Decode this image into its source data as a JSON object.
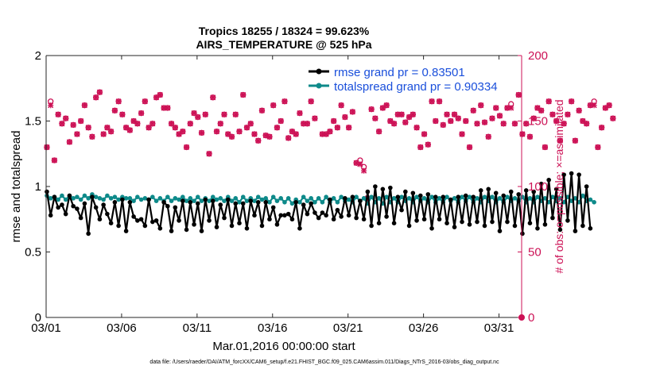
{
  "chart_data": {
    "type": "line",
    "title_line1": "Tropics 18255 / 18324 = 99.623%",
    "title_line2": "AIRS_TEMPERATURE @ 525 hPa",
    "xlabel": "Mar.01,2016 00:00:00 start",
    "ylabel_left": "rmse and totalspread",
    "ylabel_right": "# of obs: o=possible; ×=assimilated",
    "xlim": [
      0,
      31.5
    ],
    "ylim_left": [
      0,
      2
    ],
    "ylim_right": [
      0,
      200
    ],
    "x_ticks": [
      {
        "value": 0,
        "label": "03/01"
      },
      {
        "value": 5,
        "label": "03/06"
      },
      {
        "value": 10,
        "label": "03/11"
      },
      {
        "value": 15,
        "label": "03/16"
      },
      {
        "value": 20,
        "label": "03/21"
      },
      {
        "value": 25,
        "label": "03/26"
      },
      {
        "value": 30,
        "label": "03/31"
      }
    ],
    "y_ticks_left": [
      {
        "value": 0,
        "label": "0"
      },
      {
        "value": 0.5,
        "label": "0.5"
      },
      {
        "value": 1,
        "label": "1"
      },
      {
        "value": 1.5,
        "label": "1.5"
      },
      {
        "value": 2,
        "label": "2"
      }
    ],
    "y_ticks_right": [
      {
        "value": 0,
        "label": "0"
      },
      {
        "value": 50,
        "label": "50"
      },
      {
        "value": 100,
        "label": "100"
      },
      {
        "value": 150,
        "label": "150"
      },
      {
        "value": 200,
        "label": "200"
      }
    ],
    "x_step": 0.25,
    "series": [
      {
        "name": "rmse",
        "legend": "rmse grand pr = 0.83501",
        "color": "#000000",
        "axis": "left",
        "values": [
          0.96,
          0.78,
          0.92,
          0.84,
          0.86,
          0.79,
          0.93,
          0.85,
          0.83,
          0.76,
          0.87,
          0.64,
          0.92,
          0.84,
          0.75,
          0.86,
          0.79,
          0.72,
          0.88,
          0.7,
          0.9,
          0.66,
          0.88,
          0.77,
          0.74,
          0.75,
          0.7,
          0.9,
          0.73,
          0.74,
          0.68,
          0.88,
          0.85,
          0.66,
          0.84,
          0.74,
          0.89,
          0.67,
          0.88,
          0.71,
          0.87,
          0.66,
          0.9,
          0.74,
          0.89,
          0.69,
          0.86,
          0.76,
          0.9,
          0.7,
          0.87,
          0.72,
          0.87,
          0.68,
          0.89,
          0.78,
          0.88,
          0.7,
          0.88,
          0.75,
          0.84,
          0.71,
          0.78,
          0.78,
          0.79,
          0.75,
          0.88,
          0.68,
          0.86,
          0.79,
          0.87,
          0.8,
          0.76,
          0.8,
          0.78,
          0.9,
          0.75,
          0.82,
          0.77,
          0.91,
          0.78,
          0.92,
          0.76,
          0.89,
          0.75,
          0.96,
          0.7,
          1.0,
          0.72,
          0.98,
          0.77,
          0.99,
          0.72,
          0.92,
          0.82,
          0.96,
          0.7,
          0.95,
          0.74,
          0.93,
          0.75,
          0.94,
          0.68,
          0.92,
          0.75,
          0.92,
          0.72,
          0.9,
          0.69,
          0.92,
          0.73,
          0.93,
          0.71,
          0.92,
          0.73,
          0.97,
          0.7,
          0.98,
          0.73,
          0.95,
          0.66,
          0.93,
          0.73,
          0.96,
          0.7,
          0.94,
          0.64,
          0.97,
          0.72,
          0.96,
          0.68,
          1.02,
          0.71,
          1.05,
          0.76,
          0.98,
          0.67,
          1.09,
          0.74,
          1.1,
          0.66,
          1.09,
          0.7,
          1.0,
          0.68
        ]
      },
      {
        "name": "totalspread",
        "legend": "totalspread grand pr = 0.90334",
        "color": "#0e8a8a",
        "axis": "left",
        "values": [
          0.93,
          0.91,
          0.92,
          0.9,
          0.93,
          0.9,
          0.93,
          0.91,
          0.92,
          0.9,
          0.93,
          0.91,
          0.94,
          0.92,
          0.91,
          0.9,
          0.93,
          0.91,
          0.92,
          0.9,
          0.92,
          0.91,
          0.91,
          0.89,
          0.92,
          0.9,
          0.91,
          0.9,
          0.92,
          0.89,
          0.91,
          0.89,
          0.92,
          0.89,
          0.91,
          0.9,
          0.92,
          0.89,
          0.91,
          0.89,
          0.92,
          0.89,
          0.91,
          0.89,
          0.92,
          0.9,
          0.91,
          0.89,
          0.92,
          0.89,
          0.91,
          0.88,
          0.92,
          0.89,
          0.91,
          0.89,
          0.92,
          0.9,
          0.91,
          0.88,
          0.92,
          0.89,
          0.91,
          0.88,
          0.91,
          0.87,
          0.9,
          0.88,
          0.92,
          0.89,
          0.91,
          0.88,
          0.91,
          0.88,
          0.92,
          0.88,
          0.91,
          0.88,
          0.92,
          0.89,
          0.9,
          0.88,
          0.92,
          0.89,
          0.91,
          0.87,
          0.92,
          0.88,
          0.91,
          0.87,
          0.92,
          0.88,
          0.91,
          0.88,
          0.92,
          0.89,
          0.91,
          0.88,
          0.92,
          0.89,
          0.91,
          0.88,
          0.92,
          0.88,
          0.91,
          0.88,
          0.92,
          0.89,
          0.91,
          0.88,
          0.92,
          0.89,
          0.92,
          0.88,
          0.91,
          0.88,
          0.92,
          0.89,
          0.92,
          0.88,
          0.91,
          0.88,
          0.92,
          0.89,
          0.91,
          0.89,
          0.92,
          0.88,
          0.91,
          0.88,
          0.92,
          0.89,
          0.91,
          0.88,
          0.92,
          0.89,
          0.91,
          0.88,
          0.92,
          0.89,
          0.91,
          0.88,
          0.93,
          0.89,
          0.9,
          0.88
        ]
      },
      {
        "name": "obs_possible",
        "legend": "o=possible",
        "color": "#cc1155",
        "axis": "right",
        "values": [
          130,
          165,
          120,
          155,
          148,
          152,
          134,
          147,
          140,
          150,
          162,
          145,
          138,
          168,
          172,
          140,
          145,
          142,
          158,
          165,
          155,
          145,
          143,
          150,
          148,
          156,
          165,
          145,
          148,
          168,
          170,
          160,
          160,
          148,
          145,
          140,
          142,
          130,
          148,
          156,
          153,
          141,
          155,
          125,
          168,
          142,
          148,
          155,
          140,
          138,
          155,
          142,
          170,
          145,
          148,
          140,
          135,
          158,
          139,
          138,
          162,
          145,
          150,
          165,
          137,
          142,
          140,
          156,
          148,
          148,
          165,
          152,
          173,
          140,
          140,
          142,
          150,
          145,
          162,
          153,
          145,
          157,
          118,
          120,
          115,
          91,
          159,
          152,
          142,
          160,
          162,
          150,
          148,
          155,
          155,
          149,
          153,
          155,
          145,
          130,
          140,
          132,
          165,
          150,
          165,
          147,
          155,
          150,
          155,
          152,
          140,
          150,
          130,
          158,
          148,
          162,
          149,
          138,
          152,
          160,
          154,
          148,
          160,
          163,
          148,
          170,
          140,
          148,
          138,
          152,
          160,
          158,
          130,
          165,
          155,
          150,
          135,
          148,
          155,
          165,
          135,
          158,
          150,
          148,
          162,
          165,
          130,
          145,
          160,
          162,
          152
        ]
      },
      {
        "name": "obs_assimilated",
        "legend": "×=assimilated",
        "color": "#cc1155",
        "axis": "right",
        "values": [
          130,
          162,
          120,
          155,
          148,
          152,
          134,
          147,
          140,
          150,
          162,
          145,
          138,
          168,
          172,
          140,
          145,
          142,
          158,
          165,
          155,
          145,
          143,
          150,
          148,
          156,
          165,
          145,
          148,
          168,
          170,
          160,
          160,
          148,
          145,
          140,
          142,
          130,
          148,
          156,
          153,
          141,
          155,
          125,
          168,
          142,
          148,
          155,
          140,
          138,
          155,
          142,
          170,
          145,
          148,
          140,
          135,
          158,
          139,
          138,
          162,
          145,
          150,
          165,
          137,
          142,
          140,
          156,
          148,
          148,
          165,
          152,
          173,
          140,
          140,
          142,
          150,
          145,
          162,
          153,
          145,
          157,
          118,
          117,
          112,
          91,
          159,
          152,
          142,
          160,
          162,
          150,
          148,
          155,
          155,
          149,
          153,
          155,
          145,
          130,
          140,
          132,
          165,
          150,
          165,
          147,
          155,
          150,
          155,
          152,
          140,
          150,
          130,
          158,
          148,
          162,
          149,
          138,
          152,
          160,
          154,
          148,
          160,
          160,
          148,
          170,
          140,
          148,
          138,
          152,
          160,
          158,
          130,
          165,
          155,
          150,
          135,
          148,
          155,
          165,
          135,
          158,
          150,
          148,
          162,
          162,
          130,
          145,
          160,
          162,
          152
        ]
      }
    ],
    "extra_points": [
      {
        "series": "obs_possible",
        "x": 31.5,
        "value": 0
      }
    ],
    "grid": false,
    "legend_position": "top-right"
  },
  "footnote": "data file: /Users/raeder/DAI/ATM_forcXX/CAM6_setup/f.e21.FHIST_BGC.f09_025.CAM6assim.011/Diags_NTrS_2016-03/obs_diag_output.nc"
}
